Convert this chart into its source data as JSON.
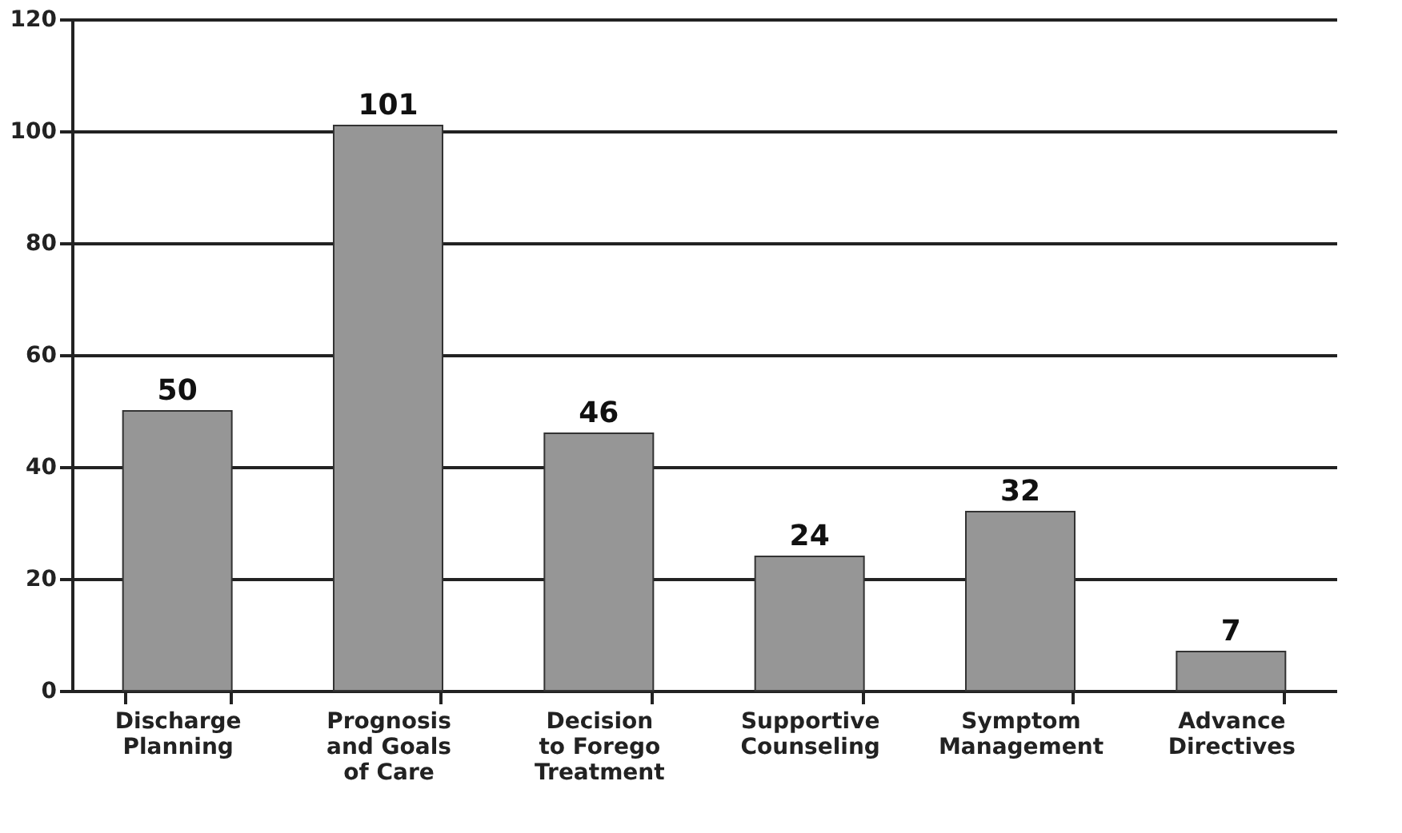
{
  "chart_data": {
    "type": "bar",
    "categories": [
      "Discharge\nPlanning",
      "Prognosis\nand Goals\nof Care",
      "Decision\nto Forego\nTreatment",
      "Supportive\nCounseling",
      "Symptom\nManagement",
      "Advance\nDirectives"
    ],
    "values": [
      50,
      101,
      46,
      24,
      32,
      7
    ],
    "color": "#969696",
    "ylim": [
      0,
      120
    ],
    "yticks": [
      0,
      20,
      40,
      60,
      80,
      100,
      120
    ],
    "grid": "y",
    "data_labels": true
  }
}
